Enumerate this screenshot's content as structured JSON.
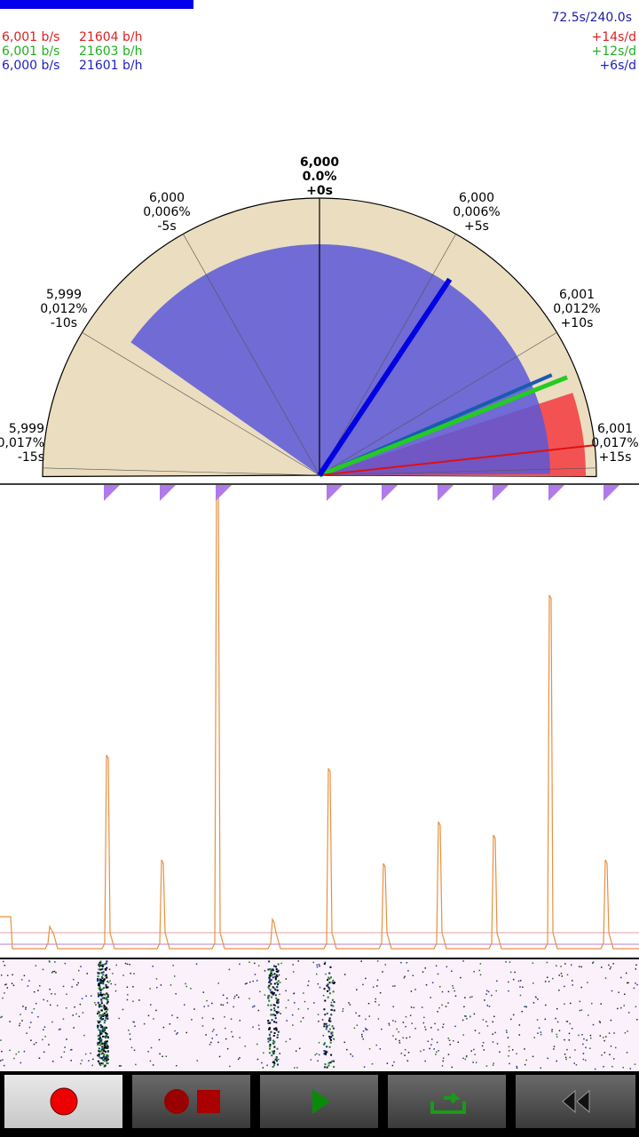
{
  "header": {
    "progress": "72.5s/240.0s",
    "rows": [
      {
        "rate": "6,001 b/s",
        "beats": "21604 b/h",
        "drift": "+14s/d"
      },
      {
        "rate": "6,001 b/s",
        "beats": "21603 b/h",
        "drift": "+12s/d"
      },
      {
        "rate": "6,000 b/s",
        "beats": "21601 b/h",
        "drift": "+6s/d"
      }
    ]
  },
  "dial": {
    "labels": [
      {
        "rate": "5,999",
        "percent": "0,017%",
        "offset": "-15s"
      },
      {
        "rate": "5,999",
        "percent": "0,012%",
        "offset": "-10s"
      },
      {
        "rate": "6,000",
        "percent": "0,006%",
        "offset": "-5s"
      },
      {
        "rate": "6,000",
        "percent": "0.0%",
        "offset": "+0s"
      },
      {
        "rate": "6,000",
        "percent": "0,006%",
        "offset": "+5s"
      },
      {
        "rate": "6,001",
        "percent": "0,012%",
        "offset": "+10s"
      },
      {
        "rate": "6,001",
        "percent": "0,017%",
        "offset": "+15s"
      }
    ]
  }
}
